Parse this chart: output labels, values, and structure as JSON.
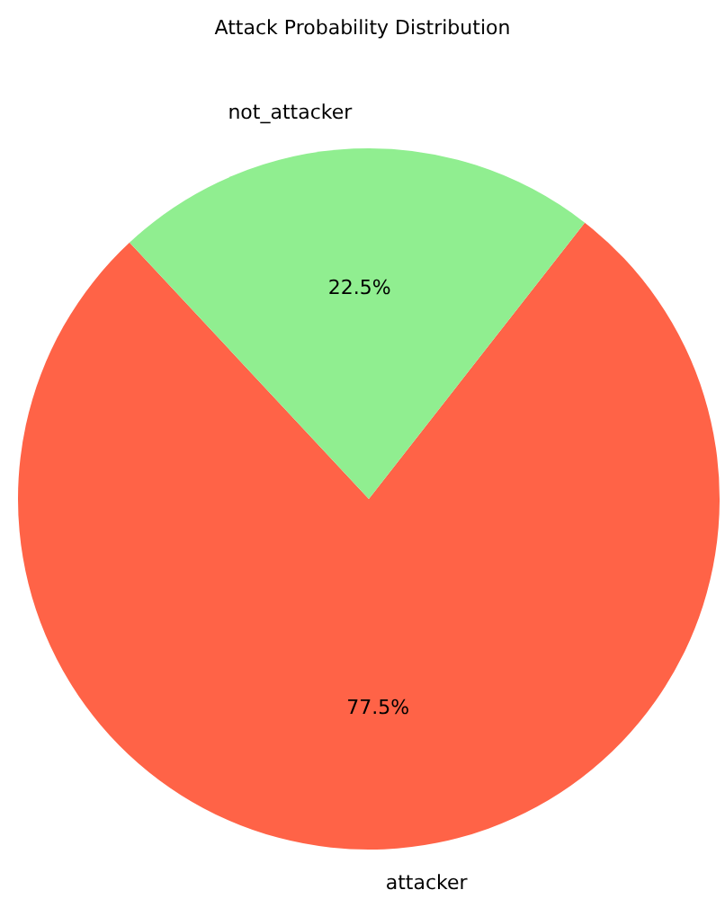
{
  "chart_data": {
    "type": "pie",
    "title": "Attack Probability Distribution",
    "categories": [
      "attacker",
      "not_attacker"
    ],
    "values": [
      77.5,
      22.5
    ],
    "colors": [
      "#ff6347",
      "#90ee90"
    ],
    "value_labels": [
      "77.5%",
      "22.5%"
    ]
  }
}
